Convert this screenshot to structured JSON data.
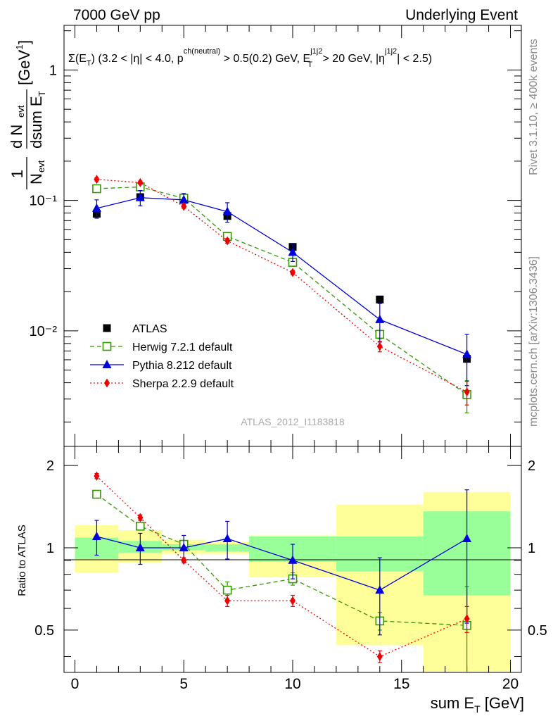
{
  "header": {
    "left": "7000 GeV pp",
    "right": "Underlying Event"
  },
  "side": {
    "rivet": "Rivet 3.1.10, ≥ 400k events",
    "mcplots": "mcplots.cern.ch [arXiv:1306.3436]"
  },
  "watermark": "ATLAS_2012_I1183818",
  "cut": {
    "sigma": "Σ(E",
    "t1": "T",
    "t2": ") (3.2 < |η| < 4.0, p",
    "chn": "ch(neutral)",
    "t3": " > 0.5(0.2) GeV, E",
    "j1j2a": "j1j2",
    "Tb": "T",
    "t4": " > 20 GeV, |η",
    "j1j2b": "j1j2",
    "t5": "| < 2.5)"
  },
  "ylabel_main": {
    "one": "1",
    "N": "N",
    "evt": "evt",
    "dN": "d N",
    "evt2": "evt",
    "dsum": "dsum E",
    "T": "T",
    "unit": "[GeV",
    "exp": "-1",
    "close": "]"
  },
  "ylabel_ratio": "Ratio to ATLAS",
  "xlabel": {
    "main": "sum E",
    "sub": "T",
    "unit": " [GeV]"
  },
  "colors": {
    "atlas": "#000000",
    "herwig": "#339900",
    "pythia": "#0000dd",
    "sherpa": "#ee0000",
    "band_inner": "#99ff99",
    "band_outer": "#ffff99"
  },
  "chart_data": {
    "type": "scatter",
    "title": "Underlying Event",
    "xlabel": "sum E_T [GeV]",
    "ylabel": "1/N_evt dN_evt/dsumE_T [GeV^-1]",
    "xlim": [
      -0.5,
      20.5
    ],
    "ylim_main": [
      0.0013,
      2.2
    ],
    "ylim_ratio": [
      0.35,
      2.35
    ],
    "x_ticks": [
      "0",
      "5",
      "10",
      "15",
      "20"
    ],
    "y_ticks_main": [
      "10⁻²",
      "10⁻¹",
      "1"
    ],
    "y_ticks_ratio": [
      "0.5",
      "1",
      "2"
    ],
    "bins": [
      [
        0,
        2
      ],
      [
        2,
        4
      ],
      [
        4,
        6
      ],
      [
        6,
        8
      ],
      [
        8,
        12
      ],
      [
        12,
        16
      ],
      [
        16,
        20
      ]
    ],
    "x": [
      1,
      3,
      5,
      7,
      10,
      14,
      18
    ],
    "data": {
      "name": "ATLAS",
      "values": [
        0.079,
        0.106,
        0.101,
        0.076,
        0.044,
        0.0174,
        0.0061
      ],
      "band_inner": [
        [
          0.91,
          1.09
        ],
        [
          0.96,
          1.06
        ],
        [
          0.98,
          1.03
        ],
        [
          0.97,
          1.03
        ],
        [
          0.89,
          1.1
        ],
        [
          0.82,
          1.1
        ],
        [
          0.67,
          1.36
        ]
      ],
      "band_outer": [
        [
          0.81,
          1.21
        ],
        [
          0.88,
          1.16
        ],
        [
          0.95,
          1.07
        ],
        [
          0.95,
          1.05
        ],
        [
          0.78,
          1.11
        ],
        [
          0.44,
          1.44
        ],
        [
          0.32,
          1.6
        ]
      ]
    },
    "series": [
      {
        "name": "Herwig 7.2.1 default",
        "style": "dashed",
        "marker": "open-square",
        "values": [
          0.123,
          0.127,
          0.104,
          0.053,
          0.0335,
          0.0094,
          0.00325
        ],
        "errors": [
          0.004,
          0.004,
          0.003,
          0.002,
          0.0015,
          0.0007,
          0.0009
        ],
        "ratio": [
          1.57,
          1.2,
          1.03,
          0.7,
          0.77,
          0.54,
          0.52
        ],
        "ratio_err": [
          0.04,
          0.03,
          0.02,
          0.05,
          0.04,
          0.04,
          0.2
        ]
      },
      {
        "name": "Pythia 8.212 default",
        "style": "solid",
        "marker": "filled-triangle",
        "values": [
          0.087,
          0.105,
          0.101,
          0.082,
          0.04,
          0.0122,
          0.0066
        ],
        "errors": [
          0.014,
          0.014,
          0.012,
          0.014,
          0.006,
          0.004,
          0.0028
        ],
        "ratio": [
          1.1,
          1.0,
          1.0,
          1.08,
          0.9,
          0.7,
          1.08
        ],
        "ratio_err": [
          0.16,
          0.13,
          0.11,
          0.17,
          0.13,
          0.22,
          0.55
        ]
      },
      {
        "name": "Sherpa 2.2.9 default",
        "style": "dotted",
        "marker": "filled-diamond",
        "values": [
          0.145,
          0.137,
          0.09,
          0.049,
          0.028,
          0.0076,
          0.0034
        ],
        "errors": [
          0.004,
          0.004,
          0.003,
          0.002,
          0.001,
          0.0007,
          0.0007
        ],
        "ratio": [
          1.83,
          1.29,
          0.9,
          0.64,
          0.64,
          0.4,
          0.55
        ],
        "ratio_err": [
          0.04,
          0.03,
          0.02,
          0.03,
          0.03,
          0.02,
          0.06
        ]
      }
    ]
  }
}
